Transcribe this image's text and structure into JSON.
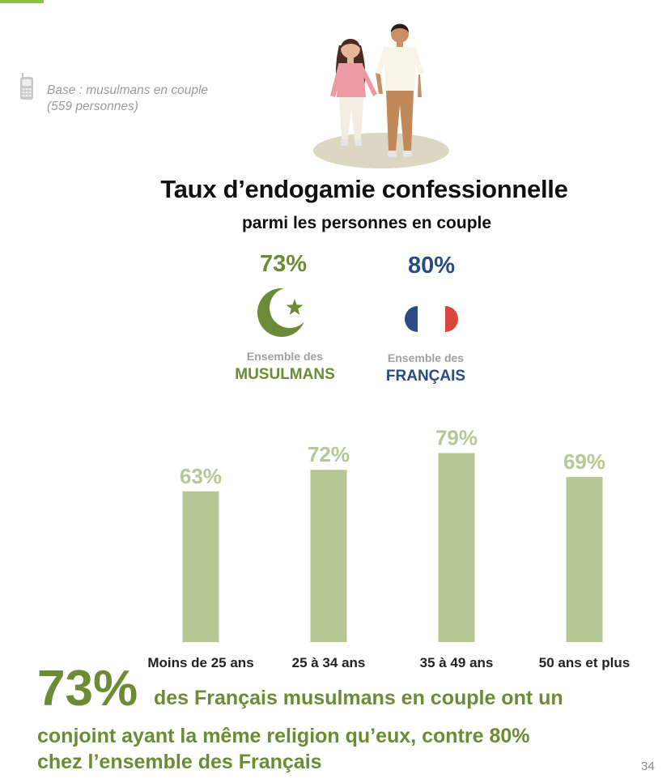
{
  "base_note": {
    "line1": "Base : musulmans en couple",
    "line2": "(559 personnes)"
  },
  "header": {
    "title": "Taux d’endogamie confessionnelle",
    "subtitle": "parmi les personnes en couple"
  },
  "comparison": {
    "muslims": {
      "value": "73%",
      "caption_pre": "Ensemble des",
      "caption_main": "MUSULMANS",
      "icon": "crescent-star-icon",
      "color": "#6b8c34"
    },
    "french": {
      "value": "80%",
      "caption_pre": "Ensemble des",
      "caption_main": "FRANÇAIS",
      "icon": "french-flag-icon",
      "color": "#2a4b84"
    }
  },
  "chart_data": {
    "type": "bar",
    "categories": [
      "Moins de 25 ans",
      "25 à 34 ans",
      "35 à 49 ans",
      "50 ans et plus"
    ],
    "values": [
      63,
      72,
      79,
      69
    ],
    "value_labels": [
      "63%",
      "72%",
      "79%",
      "69%"
    ],
    "ylim": [
      0,
      100
    ],
    "bar_color": "#b5c795",
    "label_color": "#b5c795",
    "grid": false
  },
  "summary": {
    "big_stat": "73%",
    "line1": "des Français musulmans en couple ont un",
    "line2": "conjoint ayant la même religion qu’eux, contre 80%",
    "line3": "chez l’ensemble des Français"
  },
  "footer": {
    "page_number": "34"
  },
  "colors": {
    "accent_green": "#6b8c34",
    "accent_blue": "#2a4b84",
    "flag_red": "#d9473b",
    "tab_green": "#8cc63f"
  }
}
